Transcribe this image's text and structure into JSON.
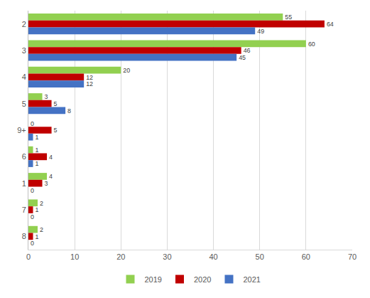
{
  "chart_data": {
    "type": "bar",
    "orientation": "horizontal",
    "categories": [
      "2",
      "3",
      "4",
      "5",
      "9+",
      "6",
      "1",
      "7",
      "8"
    ],
    "series": [
      {
        "name": "2019",
        "color": "#92d050",
        "values": [
          55,
          60,
          20,
          3,
          0,
          1,
          4,
          2,
          2
        ]
      },
      {
        "name": "2020",
        "color": "#c00000",
        "values": [
          64,
          46,
          12,
          5,
          5,
          4,
          3,
          1,
          1
        ]
      },
      {
        "name": "2021",
        "color": "#4472c4",
        "values": [
          49,
          45,
          12,
          8,
          1,
          1,
          0,
          0,
          0
        ]
      }
    ],
    "xlim": [
      0,
      70
    ],
    "xticks": [
      0,
      10,
      20,
      30,
      40,
      50,
      60,
      70
    ],
    "grid": true,
    "legend": "bottom",
    "data_labels": true
  }
}
